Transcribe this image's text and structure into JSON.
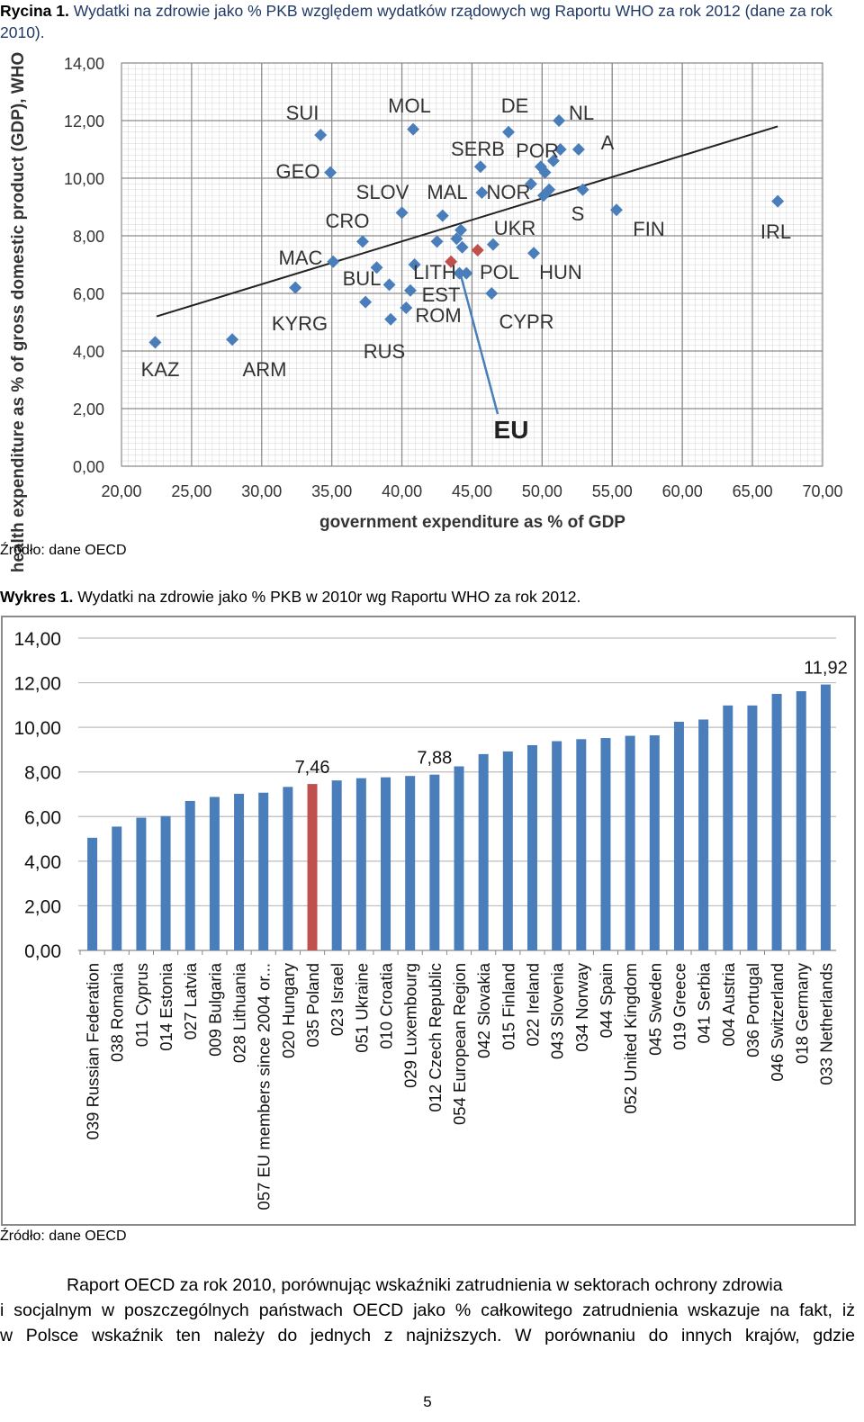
{
  "figure1": {
    "label": "Rycina 1.",
    "caption": "Wydatki na zdrowie jako % PKB względem wydatków rządowych wg Raportu WHO za rok 2012 (dane za rok 2010).",
    "source": "Źródło: dane OECD",
    "chart_data": {
      "type": "scatter",
      "xlabel": "government expenditure as % of GDP",
      "ylabel": "health expenditure as % of gross domestic product (GDP), WHO",
      "xlim": [
        20,
        70
      ],
      "ylim": [
        0,
        14
      ],
      "xticks": [
        "20,00",
        "25,00",
        "30,00",
        "35,00",
        "40,00",
        "45,00",
        "50,00",
        "55,00",
        "60,00",
        "65,00",
        "70,00"
      ],
      "yticks": [
        "0,00",
        "2,00",
        "4,00",
        "6,00",
        "8,00",
        "10,00",
        "12,00",
        "14,00"
      ],
      "grid": true,
      "trendline": {
        "x1": 22.5,
        "y1": 5.2,
        "x2": 66.8,
        "y2": 11.8
      },
      "colors": {
        "point": "#4a7ebb",
        "highlight": "#c0504d",
        "line": "#222222"
      },
      "points": [
        {
          "x": 22.4,
          "y": 4.3
        },
        {
          "x": 27.9,
          "y": 4.4
        },
        {
          "x": 32.4,
          "y": 6.2
        },
        {
          "x": 34.2,
          "y": 11.5
        },
        {
          "x": 34.9,
          "y": 10.2
        },
        {
          "x": 35.1,
          "y": 7.1
        },
        {
          "x": 37.2,
          "y": 7.8
        },
        {
          "x": 37.4,
          "y": 5.7
        },
        {
          "x": 38.2,
          "y": 6.9
        },
        {
          "x": 39.1,
          "y": 6.3
        },
        {
          "x": 39.2,
          "y": 5.1
        },
        {
          "x": 40.0,
          "y": 8.8
        },
        {
          "x": 40.3,
          "y": 5.5
        },
        {
          "x": 40.6,
          "y": 6.1
        },
        {
          "x": 40.8,
          "y": 11.7
        },
        {
          "x": 40.9,
          "y": 7.0
        },
        {
          "x": 42.5,
          "y": 7.8
        },
        {
          "x": 42.9,
          "y": 8.7
        },
        {
          "x": 43.9,
          "y": 7.9
        },
        {
          "x": 44.1,
          "y": 6.7
        },
        {
          "x": 44.2,
          "y": 8.2
        },
        {
          "x": 44.3,
          "y": 7.6
        },
        {
          "x": 44.6,
          "y": 6.7
        },
        {
          "x": 45.6,
          "y": 10.4
        },
        {
          "x": 45.7,
          "y": 9.5
        },
        {
          "x": 46.5,
          "y": 7.7
        },
        {
          "x": 46.4,
          "y": 6.0
        },
        {
          "x": 47.6,
          "y": 11.6
        },
        {
          "x": 49.2,
          "y": 9.8
        },
        {
          "x": 49.4,
          "y": 7.4
        },
        {
          "x": 49.9,
          "y": 10.4
        },
        {
          "x": 50.1,
          "y": 9.4
        },
        {
          "x": 50.2,
          "y": 10.2
        },
        {
          "x": 50.5,
          "y": 9.6
        },
        {
          "x": 50.8,
          "y": 10.6
        },
        {
          "x": 51.2,
          "y": 12.0
        },
        {
          "x": 51.3,
          "y": 11.0
        },
        {
          "x": 52.6,
          "y": 11.0
        },
        {
          "x": 52.9,
          "y": 9.6
        },
        {
          "x": 55.3,
          "y": 8.9
        },
        {
          "x": 66.8,
          "y": 9.2
        }
      ],
      "highlight_points": [
        {
          "x": 43.5,
          "y": 7.1
        },
        {
          "x": 45.4,
          "y": 7.5
        }
      ],
      "annotations": [
        "KAZ",
        "ARM",
        "KYRG",
        "MAC",
        "GEO",
        "SUI",
        "CRO",
        "BUL",
        "RUS",
        "SLOV",
        "MOL",
        "MAL",
        "SERB",
        "LITH",
        "EST",
        "ROM",
        "DE",
        "POR",
        "NL",
        "A",
        "NOR",
        "UKR",
        "POL",
        "HUN",
        "CYPR",
        "S",
        "FIN",
        "IRL",
        "EU"
      ],
      "eu_label": "EU"
    }
  },
  "figure2": {
    "label": "Wykres 1.",
    "caption": "Wydatki na zdrowie jako % PKB w 2010r wg Raportu WHO za rok 2012.",
    "source": "Źródło: dane OECD",
    "chart_data": {
      "type": "bar",
      "ylim": [
        0,
        14
      ],
      "yticks": [
        "0,00",
        "2,00",
        "4,00",
        "6,00",
        "8,00",
        "10,00",
        "12,00",
        "14,00"
      ],
      "grid": true,
      "colors": {
        "bar": "#4a7ebb",
        "highlight": "#c0504d"
      },
      "highlight_index": 9,
      "categories": [
        "039 Russian Federation",
        "038 Romania",
        "011 Cyprus",
        "014 Estonia",
        "027 Latvia",
        "009 Bulgaria",
        "028 Lithuania",
        "057 EU members since 2004 or...",
        "020 Hungary",
        "035 Poland",
        "023 Israel",
        "051 Ukraine",
        "010 Croatia",
        "029 Luxembourg",
        "012 Czech Republic",
        "054 European Region",
        "042 Slovakia",
        "015 Finland",
        "022 Ireland",
        "043 Slovenia",
        "034 Norway",
        "044 Spain",
        "052 United Kingdom",
        "045 Sweden",
        "019 Greece",
        "041 Serbia",
        "004 Austria",
        "036 Portugal",
        "046 Switzerland",
        "018 Germany",
        "033 Netherlands"
      ],
      "values": [
        5.05,
        5.55,
        5.95,
        6.02,
        6.7,
        6.88,
        7.02,
        7.07,
        7.33,
        7.46,
        7.62,
        7.72,
        7.76,
        7.82,
        7.88,
        8.25,
        8.8,
        8.92,
        9.2,
        9.38,
        9.47,
        9.52,
        9.62,
        9.64,
        10.25,
        10.35,
        10.98,
        10.98,
        11.5,
        11.62,
        11.92
      ],
      "data_labels": [
        {
          "index": 9,
          "text": "7,46"
        },
        {
          "index": 14,
          "text": "7,88"
        },
        {
          "index": 30,
          "text": "11,92"
        }
      ]
    }
  },
  "paragraph": {
    "line1": "Raport OECD za rok 2010, porównując wskaźniki zatrudnienia w sektorach ochrony zdrowia",
    "line2": "i socjalnym w poszczególnych państwach OECD jako % całkowitego zatrudnienia wskazuje na fakt, iż",
    "line3": "w Polsce wskaźnik ten należy do jednych z najniższych. W porównaniu do innych krajów, gdzie"
  },
  "page_number": "5"
}
